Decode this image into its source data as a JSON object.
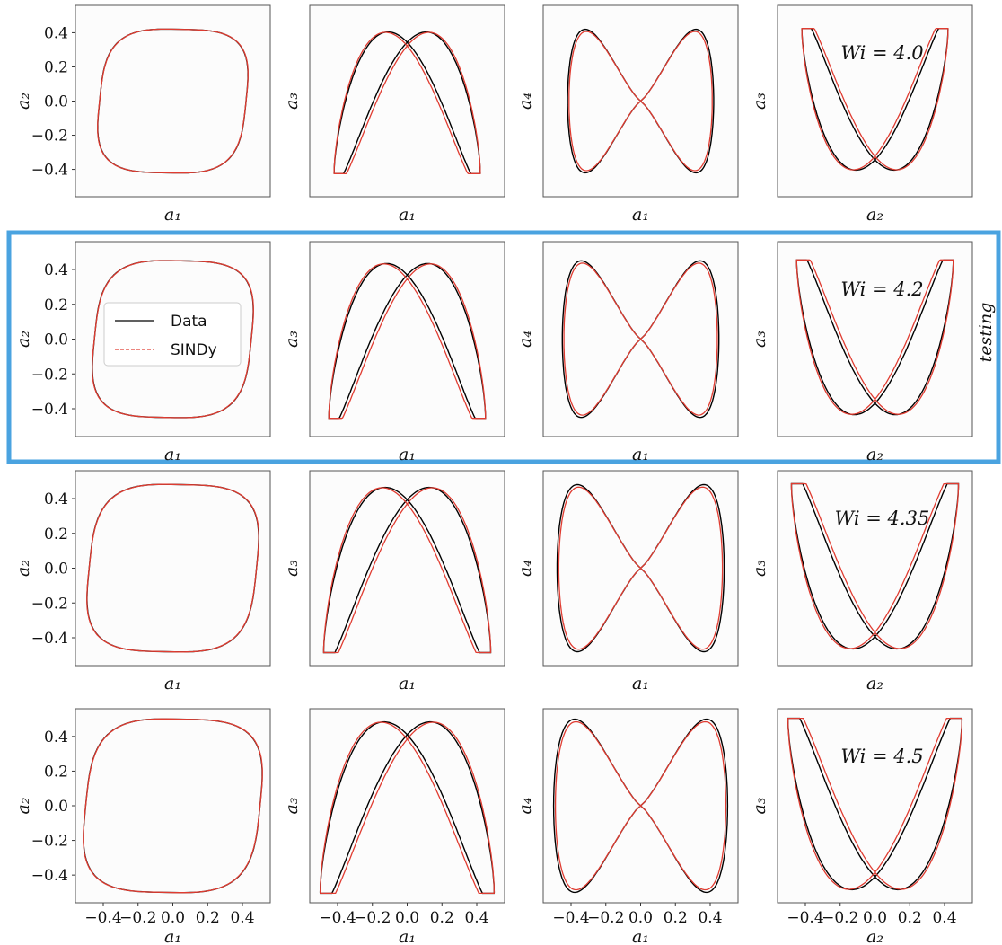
{
  "figure": {
    "highlight_color": "#4aa3e0",
    "testing_label": "testing",
    "legend": {
      "data_label": "Data",
      "sindy_label": "SINDy",
      "data_color": "#000000",
      "sindy_color": "#e03c31"
    }
  },
  "chart_data": [
    {
      "type": "line",
      "row": 1,
      "col": 1,
      "xlabel": "a₁",
      "ylabel": "a₂",
      "yticks": [
        "0.4",
        "0.2",
        "0.0",
        "−0.2",
        "−0.4"
      ],
      "series": [
        {
          "name": "Data"
        },
        {
          "name": "SINDy"
        }
      ]
    },
    {
      "type": "line",
      "row": 1,
      "col": 2,
      "xlabel": "a₁",
      "ylabel": "a₃",
      "series": [
        {
          "name": "Data"
        },
        {
          "name": "SINDy"
        }
      ]
    },
    {
      "type": "line",
      "row": 1,
      "col": 3,
      "xlabel": "a₁",
      "ylabel": "a₄",
      "series": [
        {
          "name": "Data"
        },
        {
          "name": "SINDy"
        }
      ]
    },
    {
      "type": "line",
      "row": 1,
      "col": 4,
      "xlabel": "a₂",
      "ylabel": "a₃",
      "annotation": "Wi = 4.0",
      "series": [
        {
          "name": "Data"
        },
        {
          "name": "SINDy"
        }
      ]
    },
    {
      "type": "line",
      "row": 2,
      "col": 1,
      "xlabel": "a₁",
      "ylabel": "a₂",
      "yticks": [
        "0.4",
        "0.2",
        "0.0",
        "−0.2",
        "−0.4"
      ],
      "series": [
        {
          "name": "Data"
        },
        {
          "name": "SINDy"
        }
      ]
    },
    {
      "type": "line",
      "row": 2,
      "col": 2,
      "xlabel": "a₁",
      "ylabel": "a₃",
      "series": [
        {
          "name": "Data"
        },
        {
          "name": "SINDy"
        }
      ]
    },
    {
      "type": "line",
      "row": 2,
      "col": 3,
      "xlabel": "a₁",
      "ylabel": "a₄",
      "series": [
        {
          "name": "Data"
        },
        {
          "name": "SINDy"
        }
      ]
    },
    {
      "type": "line",
      "row": 2,
      "col": 4,
      "xlabel": "a₂",
      "ylabel": "a₃",
      "annotation": "Wi = 4.2",
      "series": [
        {
          "name": "Data"
        },
        {
          "name": "SINDy"
        }
      ]
    },
    {
      "type": "line",
      "row": 3,
      "col": 1,
      "xlabel": "a₁",
      "ylabel": "a₂",
      "yticks": [
        "0.4",
        "0.2",
        "0.0",
        "−0.2",
        "−0.4"
      ],
      "series": [
        {
          "name": "Data"
        },
        {
          "name": "SINDy"
        }
      ]
    },
    {
      "type": "line",
      "row": 3,
      "col": 2,
      "xlabel": "a₁",
      "ylabel": "a₃",
      "series": [
        {
          "name": "Data"
        },
        {
          "name": "SINDy"
        }
      ]
    },
    {
      "type": "line",
      "row": 3,
      "col": 3,
      "xlabel": "a₁",
      "ylabel": "a₄",
      "series": [
        {
          "name": "Data"
        },
        {
          "name": "SINDy"
        }
      ]
    },
    {
      "type": "line",
      "row": 3,
      "col": 4,
      "xlabel": "a₂",
      "ylabel": "a₃",
      "annotation": "Wi = 4.35",
      "series": [
        {
          "name": "Data"
        },
        {
          "name": "SINDy"
        }
      ]
    },
    {
      "type": "line",
      "row": 4,
      "col": 1,
      "xlabel": "a₁",
      "ylabel": "a₂",
      "yticks": [
        "0.4",
        "0.2",
        "0.0",
        "−0.2",
        "−0.4"
      ],
      "xticks": [
        "−0.4",
        "−0.2",
        "0.0",
        "0.2",
        "0.4"
      ],
      "series": [
        {
          "name": "Data"
        },
        {
          "name": "SINDy"
        }
      ]
    },
    {
      "type": "line",
      "row": 4,
      "col": 2,
      "xlabel": "a₁",
      "ylabel": "a₃",
      "xticks": [
        "−0.4",
        "−0.2",
        "0.0",
        "0.2",
        "0.4"
      ],
      "series": [
        {
          "name": "Data"
        },
        {
          "name": "SINDy"
        }
      ]
    },
    {
      "type": "line",
      "row": 4,
      "col": 3,
      "xlabel": "a₁",
      "ylabel": "a₄",
      "xticks": [
        "−0.4",
        "−0.2",
        "0.0",
        "0.2",
        "0.4"
      ],
      "series": [
        {
          "name": "Data"
        },
        {
          "name": "SINDy"
        }
      ]
    },
    {
      "type": "line",
      "row": 4,
      "col": 4,
      "xlabel": "a₂",
      "ylabel": "a₃",
      "annotation": "Wi = 4.5",
      "xticks": [
        "−0.4",
        "−0.2",
        "0.0",
        "0.2",
        "0.4"
      ],
      "series": [
        {
          "name": "Data"
        },
        {
          "name": "SINDy"
        }
      ]
    }
  ]
}
